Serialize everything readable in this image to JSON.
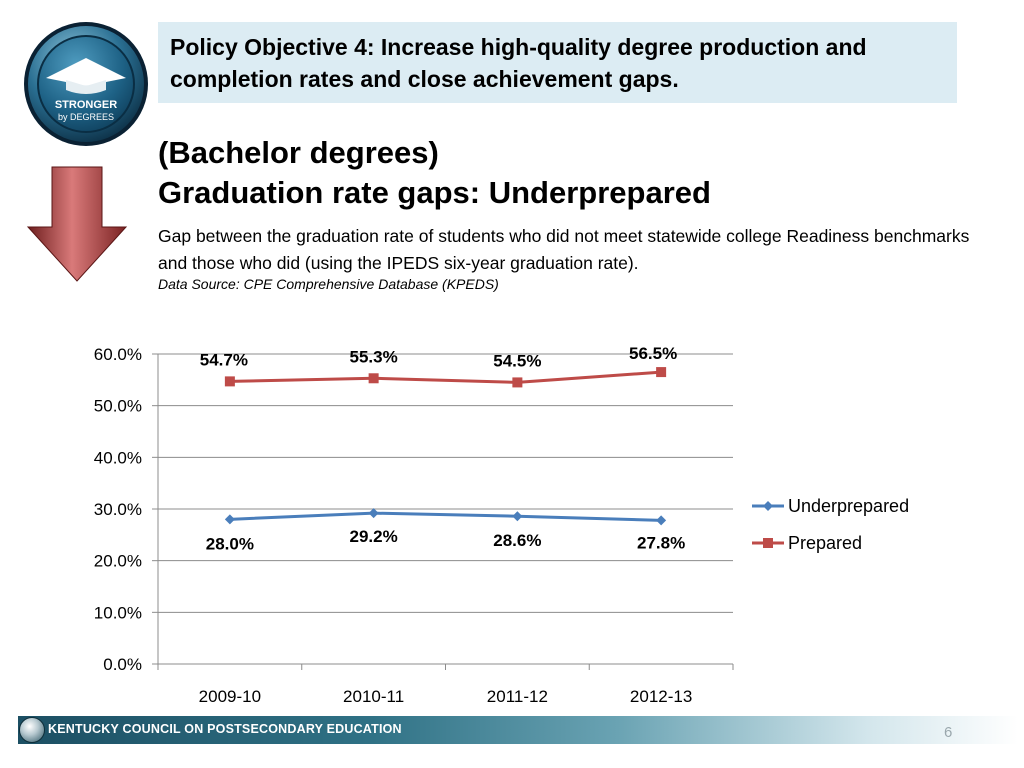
{
  "logo": {
    "line1": "STRONGER",
    "line2": "by DEGREES"
  },
  "objective": {
    "text": "Policy Objective 4: Increase high-quality degree production and completion rates and close achievement gaps."
  },
  "heading": {
    "line1": "(Bachelor degrees)",
    "line2": "Graduation rate gaps:  Underprepared"
  },
  "description": "Gap between the graduation rate of students who did not meet statewide college Readiness benchmarks and those who did (using the IPEDS six-year graduation rate).",
  "source": "Data Source: CPE Comprehensive Database (KPEDS)",
  "chart_data": {
    "type": "line",
    "categories": [
      "2009-10",
      "2010-11",
      "2011-12",
      "2012-13"
    ],
    "series": [
      {
        "name": "Underprepared",
        "values": [
          28.0,
          29.2,
          28.6,
          27.8
        ],
        "labels": [
          "28.0%",
          "29.2%",
          "28.6%",
          "27.8%"
        ],
        "color": "#4a7ebb",
        "marker": "diamond"
      },
      {
        "name": "Prepared",
        "values": [
          54.7,
          55.3,
          54.5,
          56.5
        ],
        "labels": [
          "54.7%",
          "55.3%",
          "54.5%",
          "56.5%"
        ],
        "color": "#be4b48",
        "marker": "square"
      }
    ],
    "ylim": [
      0,
      60
    ],
    "yticks": [
      "0.0%",
      "10.0%",
      "20.0%",
      "30.0%",
      "40.0%",
      "50.0%",
      "60.0%"
    ],
    "grid": true,
    "legend": "right"
  },
  "footer": {
    "org": "KENTUCKY COUNCIL ON POSTSECONDARY EDUCATION",
    "page": "6"
  }
}
